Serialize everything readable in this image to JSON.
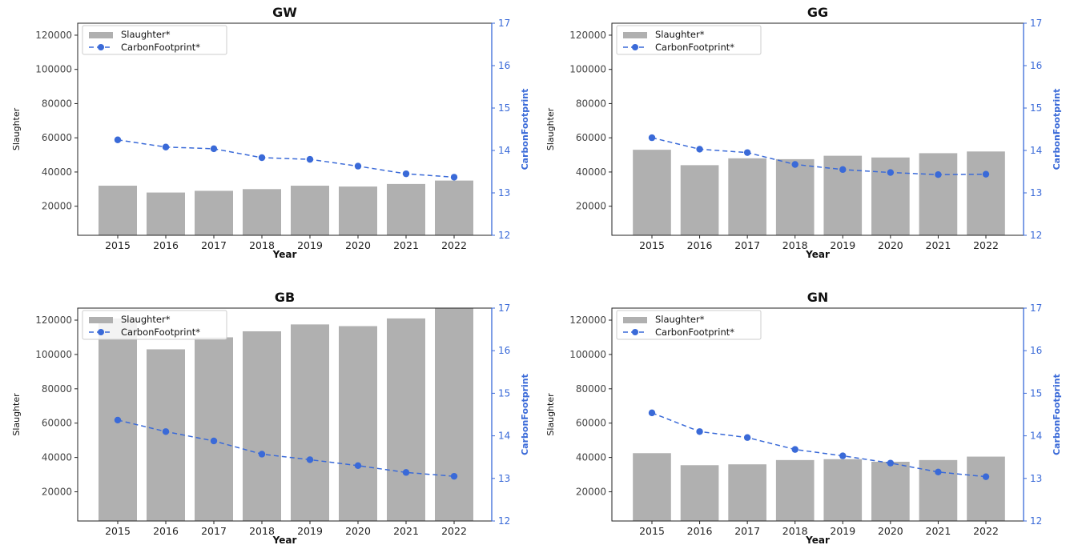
{
  "chart_data": [
    {
      "type": "bar",
      "title": "GW",
      "xlabel": "Year",
      "ylabel": "Slaughter",
      "y2label": "CarbonFootprint",
      "categories": [
        "2015",
        "2016",
        "2017",
        "2018",
        "2019",
        "2020",
        "2021",
        "2022"
      ],
      "ylim": [
        3000,
        127000
      ],
      "y2lim": [
        12,
        17
      ],
      "yticks": [
        20000,
        40000,
        60000,
        80000,
        100000,
        120000
      ],
      "y2ticks": [
        12,
        13,
        14,
        15,
        16,
        17
      ],
      "legend_position": "top-left",
      "series": [
        {
          "name": "Slaughter*",
          "type": "bar",
          "axis": "left",
          "color": "#b0b0b0",
          "values": [
            32000,
            28000,
            29000,
            30000,
            32000,
            31500,
            33000,
            35000
          ]
        },
        {
          "name": "CarbonFootprint*",
          "type": "line",
          "axis": "right",
          "color": "#3a6ad8",
          "style": "dashed",
          "values": [
            14.25,
            14.08,
            14.04,
            13.83,
            13.79,
            13.63,
            13.45,
            13.37
          ]
        }
      ]
    },
    {
      "type": "bar",
      "title": "GG",
      "xlabel": "Year",
      "ylabel": "Slaughter",
      "y2label": "CarbonFootprint",
      "categories": [
        "2015",
        "2016",
        "2017",
        "2018",
        "2019",
        "2020",
        "2021",
        "2022"
      ],
      "ylim": [
        3000,
        127000
      ],
      "y2lim": [
        12,
        17
      ],
      "yticks": [
        20000,
        40000,
        60000,
        80000,
        100000,
        120000
      ],
      "y2ticks": [
        12,
        13,
        14,
        15,
        16,
        17
      ],
      "legend_position": "top-left",
      "series": [
        {
          "name": "Slaughter*",
          "type": "bar",
          "axis": "left",
          "color": "#b0b0b0",
          "values": [
            53000,
            44000,
            48000,
            47500,
            49500,
            48500,
            51000,
            52000
          ]
        },
        {
          "name": "CarbonFootprint*",
          "type": "line",
          "axis": "right",
          "color": "#3a6ad8",
          "style": "dashed",
          "values": [
            14.3,
            14.03,
            13.95,
            13.67,
            13.55,
            13.48,
            13.43,
            13.44
          ]
        }
      ]
    },
    {
      "type": "bar",
      "title": "GB",
      "xlabel": "Year",
      "ylabel": "Slaughter",
      "y2label": "CarbonFootprint",
      "categories": [
        "2015",
        "2016",
        "2017",
        "2018",
        "2019",
        "2020",
        "2021",
        "2022"
      ],
      "ylim": [
        3000,
        127000
      ],
      "y2lim": [
        12,
        17
      ],
      "yticks": [
        20000,
        40000,
        60000,
        80000,
        100000,
        120000
      ],
      "y2ticks": [
        12,
        13,
        14,
        15,
        16,
        17
      ],
      "legend_position": "top-left",
      "series": [
        {
          "name": "Slaughter*",
          "type": "bar",
          "axis": "left",
          "color": "#b0b0b0",
          "values": [
            121000,
            103000,
            110000,
            113500,
            117500,
            116500,
            121000,
            127000
          ]
        },
        {
          "name": "CarbonFootprint*",
          "type": "line",
          "axis": "right",
          "color": "#3a6ad8",
          "style": "dashed",
          "values": [
            14.37,
            14.1,
            13.88,
            13.57,
            13.44,
            13.3,
            13.14,
            13.05
          ]
        }
      ]
    },
    {
      "type": "bar",
      "title": "GN",
      "xlabel": "Year",
      "ylabel": "Slaughter",
      "y2label": "CarbonFootprint",
      "categories": [
        "2015",
        "2016",
        "2017",
        "2018",
        "2019",
        "2020",
        "2021",
        "2022"
      ],
      "ylim": [
        3000,
        127000
      ],
      "y2lim": [
        12,
        17
      ],
      "yticks": [
        20000,
        40000,
        60000,
        80000,
        100000,
        120000
      ],
      "y2ticks": [
        12,
        13,
        14,
        15,
        16,
        17
      ],
      "legend_position": "top-left",
      "series": [
        {
          "name": "Slaughter*",
          "type": "bar",
          "axis": "left",
          "color": "#b0b0b0",
          "values": [
            42500,
            35500,
            36000,
            38500,
            39000,
            37500,
            38500,
            40500
          ]
        },
        {
          "name": "CarbonFootprint*",
          "type": "line",
          "axis": "right",
          "color": "#3a6ad8",
          "style": "dashed",
          "values": [
            14.54,
            14.1,
            13.96,
            13.68,
            13.53,
            13.36,
            13.15,
            13.04
          ]
        }
      ]
    }
  ]
}
